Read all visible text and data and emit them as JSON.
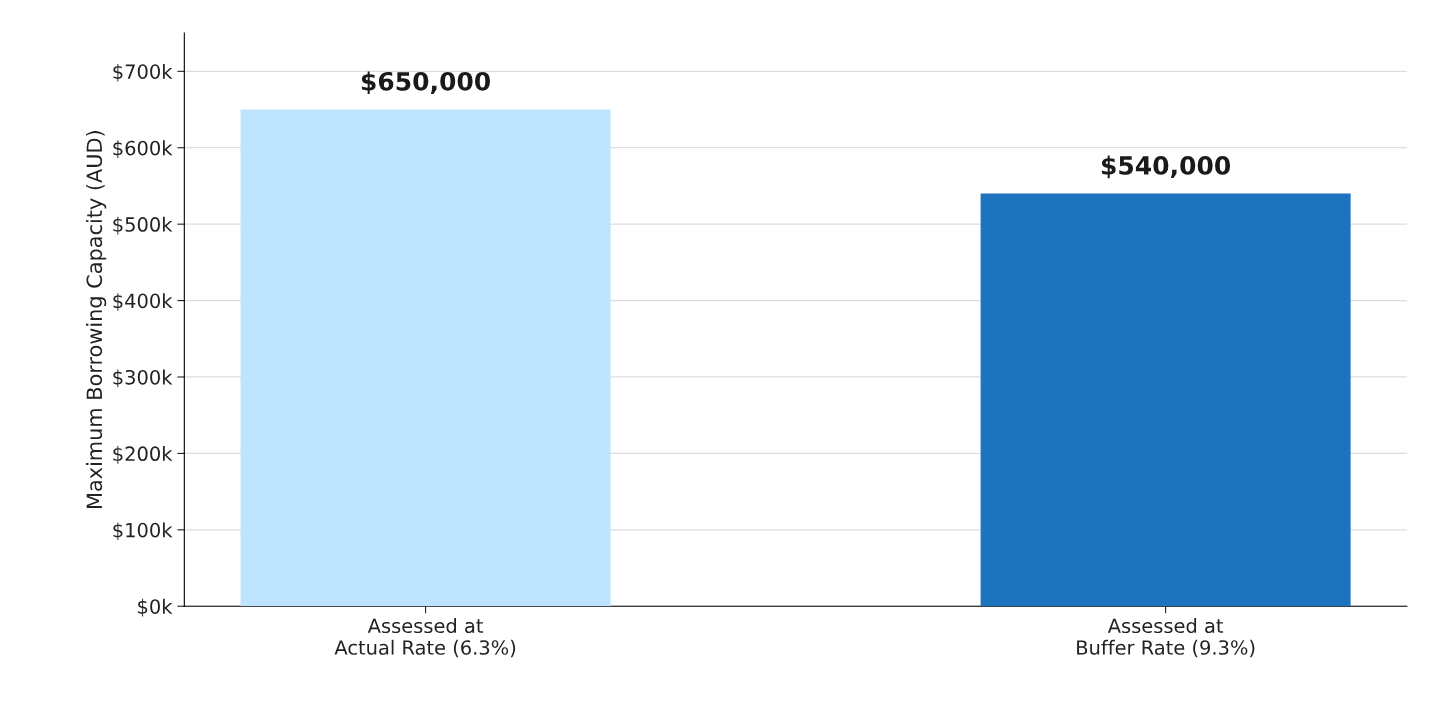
{
  "chart_data": {
    "type": "bar",
    "ylabel": "Maximum Borrowing Capacity (AUD)",
    "categories": [
      "Assessed at\nActual Rate (6.3%)",
      "Assessed at\nBuffer Rate (9.3%)"
    ],
    "values": [
      650000,
      540000
    ],
    "colors": [
      "#bee3ff",
      "#1e73be"
    ],
    "value_labels": [
      "$650,000",
      "$540,000"
    ],
    "ylim": [
      0,
      750000
    ],
    "yticks": [
      {
        "value": 0,
        "label": "$0k"
      },
      {
        "value": 100000,
        "label": "$100k"
      },
      {
        "value": 200000,
        "label": "$200k"
      },
      {
        "value": 300000,
        "label": "$300k"
      },
      {
        "value": 400000,
        "label": "$400k"
      },
      {
        "value": 500000,
        "label": "$500k"
      },
      {
        "value": 600000,
        "label": "$600k"
      },
      {
        "value": 700000,
        "label": "$700k"
      }
    ],
    "grid": "y"
  }
}
